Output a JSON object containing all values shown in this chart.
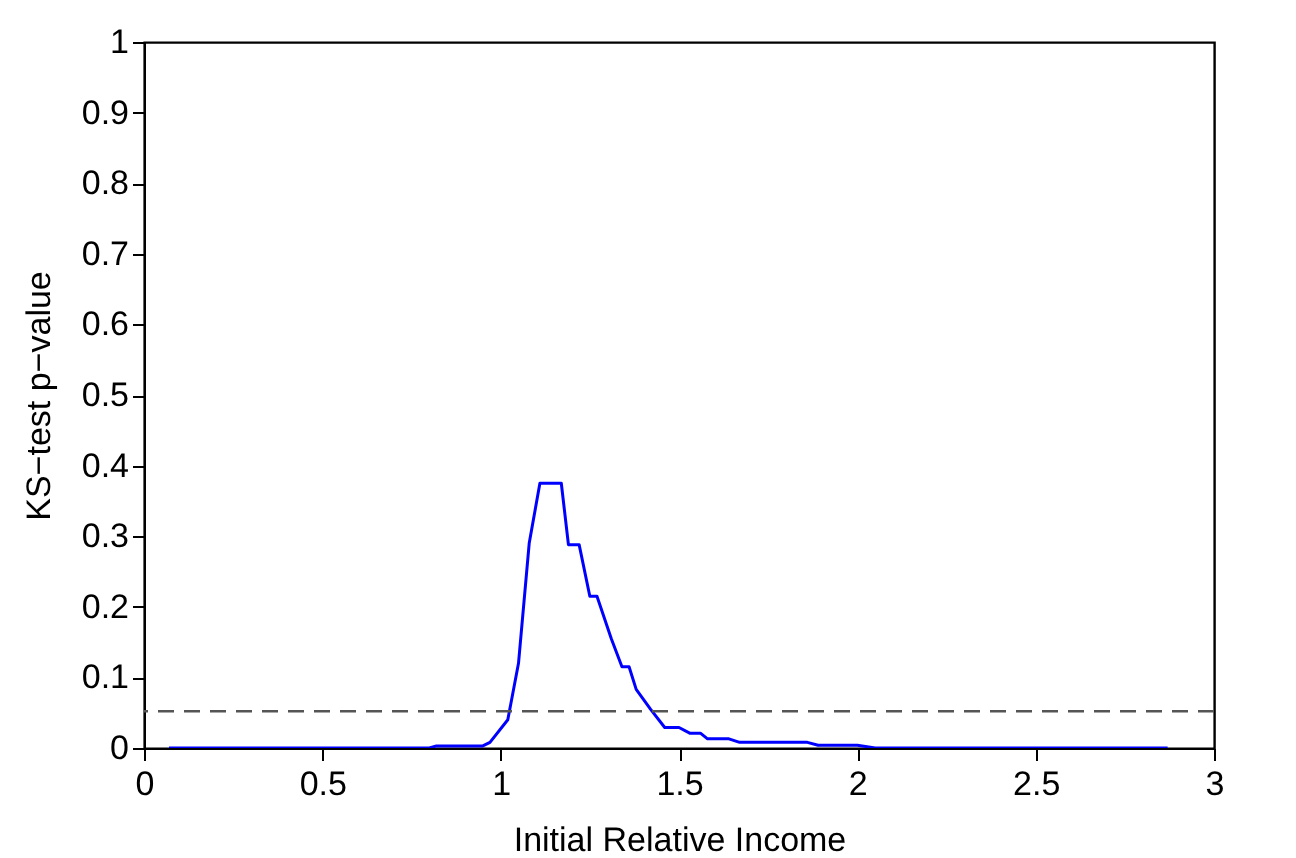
{
  "chart_data": {
    "type": "line",
    "xlabel": "Initial Relative Income",
    "ylabel": "KS−test p−value",
    "x": [
      0.07,
      0.8,
      0.82,
      0.95,
      0.97,
      1.02,
      1.05,
      1.08,
      1.11,
      1.17,
      1.19,
      1.22,
      1.25,
      1.27,
      1.31,
      1.34,
      1.36,
      1.38,
      1.42,
      1.46,
      1.5,
      1.53,
      1.56,
      1.58,
      1.64,
      1.67,
      1.86,
      1.89,
      2.0,
      2.05,
      2.87
    ],
    "series": [
      {
        "color": "#0000ff",
        "values": [
          0,
          0,
          0.003,
          0.003,
          0.008,
          0.04,
          0.12,
          0.29,
          0.375,
          0.375,
          0.288,
          0.288,
          0.215,
          0.215,
          0.155,
          0.115,
          0.115,
          0.083,
          0.055,
          0.029,
          0.029,
          0.021,
          0.021,
          0.013,
          0.013,
          0.008,
          0.008,
          0.004,
          0.004,
          0,
          0
        ]
      }
    ],
    "xlim": [
      0,
      3
    ],
    "xticks": [
      0,
      0.5,
      1,
      1.5,
      2,
      2.5,
      3
    ],
    "ylim": [
      0,
      1
    ],
    "yticks": [
      0,
      0.1,
      0.2,
      0.3,
      0.4,
      0.5,
      0.6,
      0.7,
      0.8,
      0.9,
      1
    ],
    "ref_lines": [
      {
        "axis": "y",
        "value": 0.052,
        "color": "#555555",
        "line_style": "dashed"
      }
    ],
    "grid": false,
    "legend": false
  }
}
